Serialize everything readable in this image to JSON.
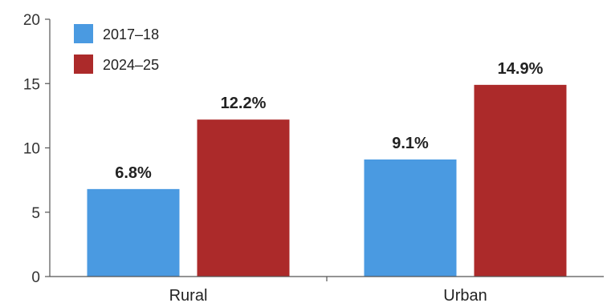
{
  "chart_data": {
    "type": "bar",
    "categories": [
      "Rural",
      "Urban"
    ],
    "series": [
      {
        "name": "2017–18",
        "values": [
          6.8,
          9.1
        ],
        "labels": [
          "6.8%",
          "9.1%"
        ],
        "color": "#4a9ae1"
      },
      {
        "name": "2024–25",
        "values": [
          12.2,
          14.9
        ],
        "labels": [
          "12.2%",
          "14.9%"
        ],
        "color": "#ac2a2a"
      }
    ],
    "ylim": [
      0,
      20
    ],
    "yticks": [
      "0",
      "5",
      "10",
      "15",
      "20"
    ],
    "grid": false,
    "legend": "top-left"
  }
}
